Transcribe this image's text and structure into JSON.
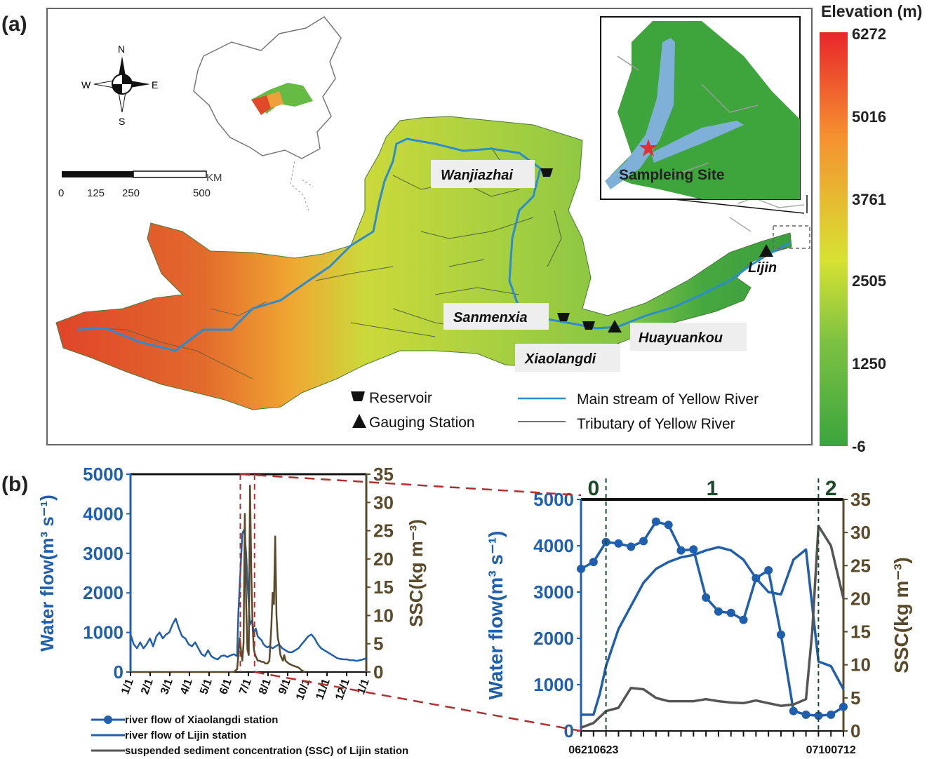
{
  "panel_a": {
    "label": "(a)",
    "compass": {
      "n": "N",
      "s": "S",
      "e": "E",
      "w": "W"
    },
    "scale_bar": {
      "unit": "KM",
      "ticks": [
        "0",
        "125",
        "250",
        "500"
      ]
    },
    "places": {
      "wanjiazhai": "Wanjiazhai",
      "sanmenxia": "Sanmenxia",
      "xiaolangdi": "Xiaolangdi",
      "huayuankou": "Huayuankou",
      "lijin": "Lijin"
    },
    "inset_label": "Sampleing Site",
    "legend": {
      "reservoir": "Reservoir",
      "gauging": "Gauging Station",
      "main_stream": "Main stream of Yellow River",
      "tributary": "Tributary of Yellow River"
    },
    "colorbar": {
      "title": "Elevation (m)",
      "ticks": [
        "6272",
        "5016",
        "3761",
        "2505",
        "1250",
        "-6"
      ],
      "colors": [
        "#e8262a",
        "#f5902f",
        "#d7e232",
        "#7cc142",
        "#3aa53e"
      ]
    }
  },
  "panel_b": {
    "label": "(b)",
    "legend": {
      "xiaolangdi": "river flow of Xiaolangdi station",
      "lijin": "river flow of Lijin station",
      "ssc": "suspended sediment concentration (SSC) of Lijin station"
    },
    "colors": {
      "flow": "#1f5fae",
      "ssc_left": "#5a4a2a",
      "ssc_right": "#555555",
      "phase": "#1a4a2a",
      "guide": "#b03030"
    }
  },
  "chart_data": [
    {
      "type": "line",
      "title": "",
      "xlabel": "",
      "ylabel": "Water flow(m³ s⁻¹)",
      "y2label": "SSC(kg m⁻³)",
      "ylim": [
        0,
        5000
      ],
      "y2lim": [
        0,
        35
      ],
      "xlim": [
        0,
        365
      ],
      "y_ticks": [
        "0",
        "1000",
        "2000",
        "3000",
        "4000",
        "5000"
      ],
      "y2_ticks": [
        "0",
        "5",
        "10",
        "15",
        "20",
        "25",
        "30",
        "35"
      ],
      "categories": [
        "1/1",
        "2/1",
        "3/1",
        "4/1",
        "5/1",
        "6/1",
        "7/1",
        "8/1",
        "9/1",
        "10/1",
        "11/1",
        "12/1",
        "1/1"
      ],
      "series": [
        {
          "name": "river flow of Lijin station",
          "axis": "left",
          "x": [
            0,
            5,
            10,
            15,
            20,
            25,
            30,
            35,
            40,
            45,
            50,
            55,
            60,
            65,
            70,
            75,
            80,
            85,
            90,
            95,
            100,
            105,
            110,
            115,
            120,
            125,
            130,
            135,
            140,
            145,
            150,
            155,
            160,
            165,
            167,
            170,
            173,
            176,
            179,
            182,
            185,
            188,
            191,
            194,
            197,
            200,
            203,
            206,
            209,
            212,
            215,
            220,
            225,
            230,
            235,
            240,
            245,
            250,
            255,
            260,
            265,
            270,
            275,
            280,
            285,
            290,
            295,
            300,
            305,
            310,
            315,
            320,
            325,
            330,
            335,
            340,
            345,
            350,
            355,
            360,
            365
          ],
          "values": [
            950,
            700,
            600,
            750,
            600,
            700,
            850,
            650,
            900,
            1000,
            850,
            950,
            1000,
            1200,
            1350,
            1100,
            900,
            850,
            700,
            650,
            750,
            600,
            450,
            400,
            550,
            400,
            350,
            320,
            400,
            420,
            380,
            420,
            450,
            400,
            1500,
            2500,
            3500,
            3600,
            3000,
            2000,
            1200,
            1300,
            1000,
            1100,
            900,
            850,
            800,
            700,
            650,
            620,
            650,
            600,
            650,
            700,
            600,
            550,
            500,
            500,
            550,
            600,
            700,
            800,
            900,
            950,
            850,
            700,
            600,
            550,
            500,
            450,
            400,
            350,
            330,
            320,
            320,
            300,
            300,
            280,
            300,
            320,
            350
          ]
        },
        {
          "name": "SSC of Lijin station",
          "axis": "right",
          "x": [
            0,
            160,
            165,
            167,
            169,
            171,
            173,
            175,
            177,
            179,
            181,
            183,
            185,
            187,
            189,
            191,
            193,
            195,
            197,
            200,
            203,
            206,
            209,
            212,
            215,
            218,
            220,
            222,
            224,
            226,
            228,
            230,
            232,
            234,
            236,
            238,
            240,
            245,
            250,
            255,
            260,
            265,
            270
          ],
          "values": [
            0,
            0,
            0.5,
            3,
            6,
            4,
            2,
            5,
            28,
            12,
            4,
            3,
            33,
            18,
            8,
            4,
            3,
            2.5,
            2,
            2,
            1.8,
            1.8,
            1.5,
            1.5,
            2,
            8,
            14,
            12,
            24,
            10,
            6,
            5,
            3,
            2.5,
            2,
            3,
            2,
            1.5,
            1.2,
            1,
            0.8,
            0.3,
            0
          ]
        }
      ],
      "highlight_range_days": [
        170,
        192
      ]
    },
    {
      "type": "line",
      "title": "",
      "xlabel": "",
      "ylabel": "Water flow(m³ s⁻¹)",
      "y2label": "SSC(kg m⁻³)",
      "ylim": [
        0,
        5000
      ],
      "y2lim": [
        0,
        35
      ],
      "xlim": [
        0,
        21
      ],
      "y_ticks": [
        "0",
        "1000",
        "2000",
        "3000",
        "4000",
        "5000"
      ],
      "y2_ticks": [
        "0",
        "5",
        "10",
        "15",
        "20",
        "25",
        "30",
        "35"
      ],
      "x_tick_labels": [
        {
          "x": 0,
          "label": "0621"
        },
        {
          "x": 2,
          "label": "0623"
        },
        {
          "x": 19,
          "label": "0710"
        },
        {
          "x": 21,
          "label": "0712"
        }
      ],
      "phases": [
        {
          "label": "0",
          "x": 1
        },
        {
          "label": "1",
          "x": 10.5
        },
        {
          "label": "2",
          "x": 20
        }
      ],
      "phase_boundaries": [
        2,
        19
      ],
      "series": [
        {
          "name": "river flow of Xiaolangdi station",
          "axis": "left",
          "markers": true,
          "x": [
            0,
            1,
            2,
            3,
            4,
            5,
            6,
            7,
            8,
            9,
            10,
            11,
            12,
            13,
            14,
            15,
            16,
            17,
            18,
            19,
            20,
            21
          ],
          "values": [
            3500,
            3650,
            4080,
            4050,
            3980,
            4100,
            4520,
            4450,
            3900,
            3920,
            2880,
            2580,
            2550,
            2400,
            3300,
            3470,
            2080,
            430,
            350,
            330,
            350,
            520
          ]
        },
        {
          "name": "river flow of Lijin station",
          "axis": "left",
          "markers": false,
          "x": [
            0,
            1,
            1.5,
            2,
            3,
            4,
            5,
            6,
            7,
            8,
            9,
            10,
            11,
            12,
            13,
            14,
            15,
            16,
            17,
            18,
            18.5,
            19,
            20,
            21
          ],
          "values": [
            350,
            350,
            800,
            1400,
            2200,
            2700,
            3200,
            3500,
            3650,
            3750,
            3800,
            3900,
            3970,
            3900,
            3700,
            3300,
            3000,
            2950,
            3700,
            3920,
            2700,
            1500,
            1400,
            900
          ]
        },
        {
          "name": "suspended sediment concentration (SSC) of Lijin station",
          "axis": "right",
          "x": [
            0,
            1,
            2,
            3,
            4,
            5,
            6,
            7,
            8,
            9,
            10,
            11,
            12,
            13,
            14,
            15,
            16,
            17,
            18,
            18.5,
            19,
            20,
            21
          ],
          "values": [
            0.5,
            1.2,
            3,
            3.5,
            6.5,
            6.3,
            5,
            4.5,
            4.5,
            4.5,
            4.8,
            4.5,
            4.3,
            4.2,
            4.6,
            4.2,
            3.8,
            4,
            4.8,
            15,
            31,
            28,
            20
          ]
        }
      ]
    }
  ]
}
